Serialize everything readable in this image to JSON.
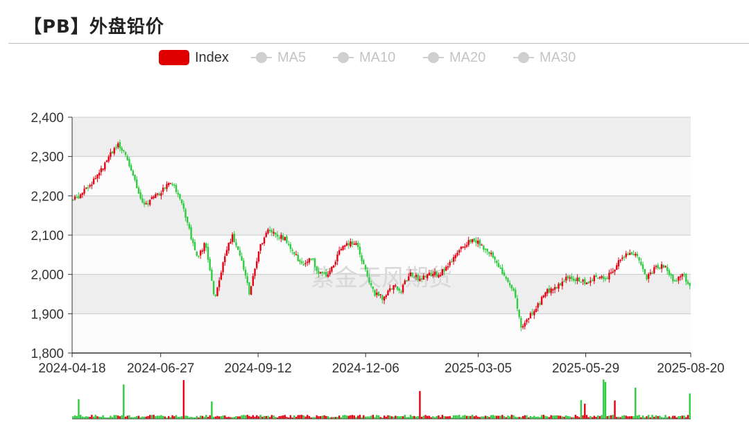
{
  "header": {
    "title": "【PB】外盘铅价"
  },
  "watermark": "紫金天风期货",
  "legend": [
    {
      "label": "Index",
      "active": true,
      "icon": "red-box-icon"
    },
    {
      "label": "MA5",
      "active": false,
      "icon": "line-dot-icon"
    },
    {
      "label": "MA10",
      "active": false,
      "icon": "line-dot-icon"
    },
    {
      "label": "MA20",
      "active": false,
      "icon": "line-dot-icon"
    },
    {
      "label": "MA30",
      "active": false,
      "icon": "line-dot-icon"
    }
  ],
  "colors": {
    "up": "#e60012",
    "down": "#2ecc40",
    "grid": "#cccccc",
    "band": "#eeeeee"
  },
  "chart_data": {
    "type": "candlestick",
    "title": "",
    "ylim": [
      1800,
      2400
    ],
    "yticks": [
      "2,400",
      "2,300",
      "2,200",
      "2,100",
      "2,000",
      "1,900",
      "1,800"
    ],
    "xrange": [
      "2024-04-18",
      "2025-08-20"
    ],
    "xticks": [
      "2024-04-18",
      "2024-06-27",
      "2024-09-12",
      "2024-12-06",
      "2025-03-05",
      "2025-05-29",
      "2025-08-20"
    ],
    "grid": true,
    "legend": "top-center",
    "trend": [
      [
        "2024-04-18",
        2190
      ],
      [
        "2024-04-25",
        2205
      ],
      [
        "2024-05-02",
        2230
      ],
      [
        "2024-05-09",
        2260
      ],
      [
        "2024-05-16",
        2300
      ],
      [
        "2024-05-23",
        2330
      ],
      [
        "2024-05-30",
        2300
      ],
      [
        "2024-06-06",
        2240
      ],
      [
        "2024-06-13",
        2170
      ],
      [
        "2024-06-20",
        2200
      ],
      [
        "2024-06-27",
        2210
      ],
      [
        "2024-07-04",
        2240
      ],
      [
        "2024-07-11",
        2200
      ],
      [
        "2024-07-18",
        2130
      ],
      [
        "2024-07-25",
        2040
      ],
      [
        "2024-08-01",
        2080
      ],
      [
        "2024-08-08",
        1940
      ],
      [
        "2024-08-15",
        2030
      ],
      [
        "2024-08-22",
        2100
      ],
      [
        "2024-08-29",
        2050
      ],
      [
        "2024-09-05",
        1950
      ],
      [
        "2024-09-12",
        2060
      ],
      [
        "2024-09-19",
        2120
      ],
      [
        "2024-09-26",
        2100
      ],
      [
        "2024-10-03",
        2090
      ],
      [
        "2024-10-10",
        2050
      ],
      [
        "2024-10-17",
        2030
      ],
      [
        "2024-10-24",
        2040
      ],
      [
        "2024-10-31",
        2000
      ],
      [
        "2024-11-07",
        2000
      ],
      [
        "2024-11-14",
        2050
      ],
      [
        "2024-11-21",
        2080
      ],
      [
        "2024-11-28",
        2080
      ],
      [
        "2024-12-06",
        2010
      ],
      [
        "2024-12-13",
        1950
      ],
      [
        "2024-12-20",
        1940
      ],
      [
        "2024-12-27",
        1970
      ],
      [
        "2025-01-03",
        1960
      ],
      [
        "2025-01-10",
        2000
      ],
      [
        "2025-01-17",
        1990
      ],
      [
        "2025-01-24",
        2000
      ],
      [
        "2025-01-31",
        2000
      ],
      [
        "2025-02-07",
        2010
      ],
      [
        "2025-02-14",
        2040
      ],
      [
        "2025-02-21",
        2070
      ],
      [
        "2025-02-28",
        2090
      ],
      [
        "2025-03-05",
        2080
      ],
      [
        "2025-03-12",
        2060
      ],
      [
        "2025-03-19",
        2040
      ],
      [
        "2025-03-26",
        1990
      ],
      [
        "2025-04-02",
        1960
      ],
      [
        "2025-04-09",
        1860
      ],
      [
        "2025-04-16",
        1900
      ],
      [
        "2025-04-23",
        1930
      ],
      [
        "2025-04-30",
        1960
      ],
      [
        "2025-05-07",
        1970
      ],
      [
        "2025-05-14",
        1990
      ],
      [
        "2025-05-21",
        1990
      ],
      [
        "2025-05-29",
        1980
      ],
      [
        "2025-06-05",
        1990
      ],
      [
        "2025-06-12",
        1990
      ],
      [
        "2025-06-19",
        2000
      ],
      [
        "2025-06-26",
        2040
      ],
      [
        "2025-07-03",
        2060
      ],
      [
        "2025-07-10",
        2040
      ],
      [
        "2025-07-17",
        1990
      ],
      [
        "2025-07-24",
        2020
      ],
      [
        "2025-07-31",
        2020
      ],
      [
        "2025-08-07",
        1980
      ],
      [
        "2025-08-14",
        2000
      ],
      [
        "2025-08-20",
        1975
      ]
    ]
  }
}
